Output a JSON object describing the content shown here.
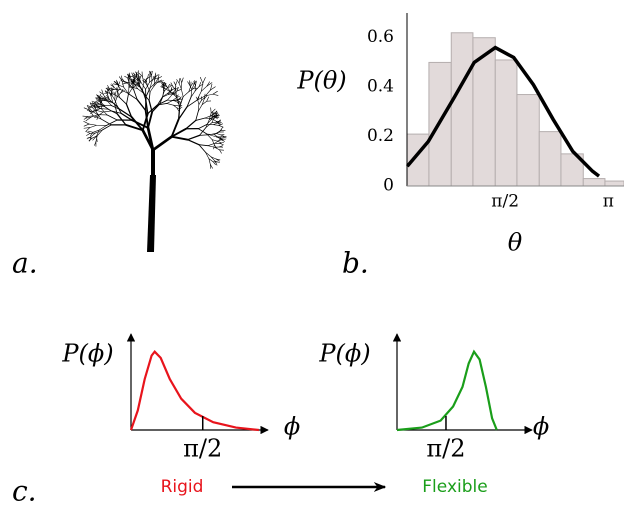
{
  "panel_labels": [
    "a.",
    "b.",
    "c."
  ],
  "rigid_label": "Rigid",
  "flexible_label": "Flexible",
  "chart_data": [
    {
      "type": "histogram",
      "xlabel": "θ",
      "ylabel": "P(θ)",
      "bins": [
        0.076,
        0.41,
        0.75,
        1.08,
        1.42,
        1.75,
        2.09,
        2.42,
        2.76,
        3.09,
        3.38
      ],
      "values": [
        0.21,
        0.5,
        0.62,
        0.6,
        0.51,
        0.37,
        0.22,
        0.13,
        0.03,
        0.02
      ],
      "color": "#e2dada",
      "overlay": {
        "x": [
          0.08,
          0.4,
          0.8,
          1.1,
          1.42,
          1.7,
          2.0,
          2.3,
          2.6,
          2.9,
          3.0
        ],
        "values": [
          0.08,
          0.18,
          0.36,
          0.5,
          0.56,
          0.52,
          0.41,
          0.27,
          0.14,
          0.06,
          0.04
        ],
        "color": "#000000"
      },
      "xlim": [
        0,
        3.38
      ],
      "ylim": [
        0,
        0.7
      ],
      "xticks": [
        {
          "value": 1.5708,
          "label": "π/2"
        },
        {
          "value": 3.1416,
          "label": "π"
        }
      ],
      "yticks": [
        0,
        0.2,
        0.4,
        0.6
      ]
    },
    {
      "type": "line",
      "xlabel": "ϕ",
      "ylabel": "P(ϕ)",
      "color": "#e8141c",
      "x": [
        0,
        0.15,
        0.3,
        0.45,
        0.52,
        0.65,
        0.85,
        1.1,
        1.4,
        1.8,
        2.3,
        2.8
      ],
      "values": [
        0,
        0.25,
        0.65,
        0.95,
        1,
        0.92,
        0.65,
        0.4,
        0.22,
        0.1,
        0.03,
        0
      ],
      "xlim": [
        0,
        3.0
      ],
      "ylim": [
        0,
        1.2
      ],
      "xticks": [
        {
          "value": 1.5708,
          "label": "π/2"
        }
      ]
    },
    {
      "type": "line",
      "xlabel": "ϕ",
      "ylabel": "P(ϕ)",
      "color": "#1a9e1a",
      "x": [
        0,
        0.8,
        1.4,
        1.8,
        2.1,
        2.3,
        2.47,
        2.65,
        2.85,
        3.05,
        3.2
      ],
      "values": [
        0,
        0.03,
        0.12,
        0.3,
        0.55,
        0.85,
        1,
        0.9,
        0.55,
        0.15,
        0
      ],
      "xlim": [
        0,
        4.33
      ],
      "ylim": [
        0,
        1.2
      ],
      "xticks": [
        {
          "value": 1.5708,
          "label": "π/2"
        }
      ]
    }
  ]
}
